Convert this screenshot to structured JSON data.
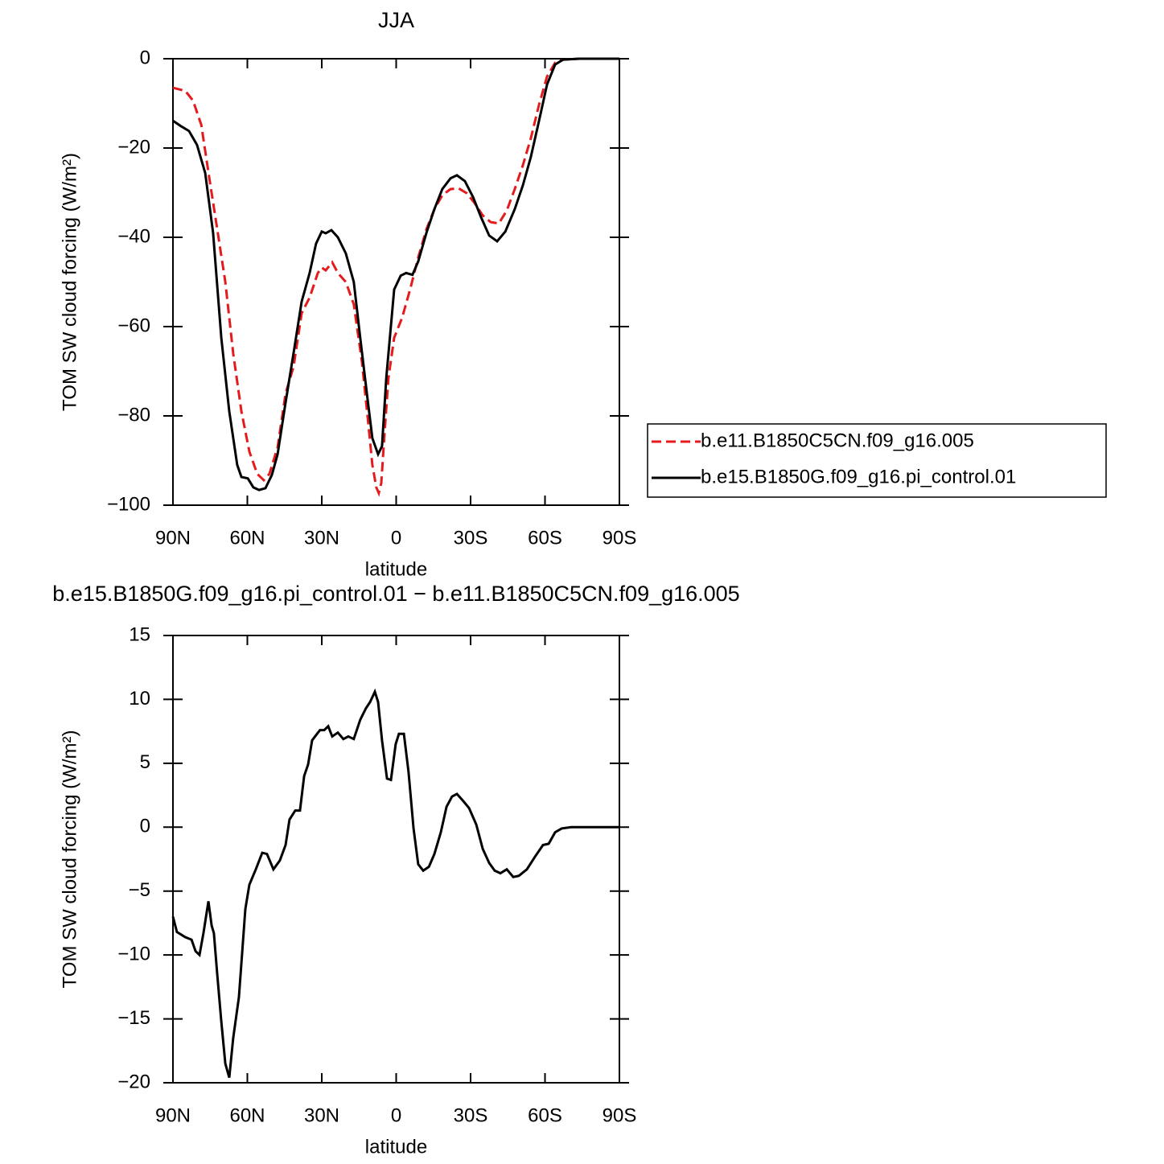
{
  "chart_data": [
    {
      "type": "line",
      "title": "JJA",
      "xlabel": "latitude",
      "ylabel": "TOM SW cloud forcing (W/m²)",
      "xlim": [
        90,
        -90
      ],
      "xticks": [
        {
          "value": 90,
          "label": "90N"
        },
        {
          "value": 60,
          "label": "60N"
        },
        {
          "value": 30,
          "label": "30N"
        },
        0,
        {
          "value": -30,
          "label": "30S"
        },
        {
          "value": -60,
          "label": "60S"
        },
        {
          "value": -90,
          "label": "90S"
        }
      ],
      "ylim": [
        -100,
        0
      ],
      "yticks": [
        {
          "value": -100,
          "label": "−100"
        },
        {
          "value": -80,
          "label": "−80"
        },
        {
          "value": -60,
          "label": "−60"
        },
        {
          "value": -40,
          "label": "−40"
        },
        {
          "value": -20,
          "label": "−20"
        },
        0
      ],
      "legend": "right",
      "series": [
        {
          "name": "b.e11.B1850C5CN.f09_g16.005",
          "color": "#e41a1c",
          "dash": true,
          "x": [
            90,
            85,
            81.9,
            78.6,
            75.4,
            72.2,
            68.9,
            65.7,
            62.4,
            59.2,
            56,
            53.4,
            51.1,
            47.8,
            44.6,
            41.4,
            38.1,
            34.9,
            31.6,
            30,
            28.4,
            25.8,
            23.5,
            20.3,
            17.1,
            13.8,
            11.2,
            9.6,
            8,
            7,
            6,
            4.7,
            3.1,
            0.8,
            -2.4,
            -5.6,
            -8.9,
            -12.2,
            -15.4,
            -18.6,
            -21.9,
            -25.1,
            -28.4,
            -31.6,
            -34.9,
            -38.1,
            -41.4,
            -44.6,
            -47.8,
            -51.1,
            -54.3,
            -57.6,
            -60.8,
            -64.1,
            -67.3,
            -73.8,
            -90
          ],
          "values": [
            -6.5,
            -7.2,
            -9.4,
            -14.8,
            -26.5,
            -38,
            -50,
            -66,
            -79,
            -88,
            -93,
            -94.4,
            -93,
            -87,
            -75,
            -69,
            -57,
            -53.5,
            -48,
            -46.8,
            -47.4,
            -45.6,
            -48,
            -50,
            -55,
            -68,
            -82,
            -91,
            -96,
            -97.3,
            -95,
            -84,
            -71.5,
            -62.5,
            -58,
            -51.7,
            -44.5,
            -38.2,
            -33.7,
            -30.6,
            -29.2,
            -29,
            -30.1,
            -32.3,
            -35.1,
            -36.6,
            -36.9,
            -34,
            -29.2,
            -23.8,
            -17.8,
            -10.3,
            -4,
            -0.9,
            -0.2,
            0,
            0
          ]
        },
        {
          "name": "b.e15.B1850G.f09_g16.pi_control.01",
          "color": "#000000",
          "dash": false,
          "x": [
            90,
            86.8,
            83.5,
            80.3,
            77,
            73.8,
            70.5,
            67.3,
            64.1,
            62.4,
            59.8,
            57.6,
            55.3,
            52.7,
            50.1,
            47.8,
            44.6,
            41.4,
            38.1,
            34.9,
            32.3,
            30,
            28.4,
            26.1,
            23.5,
            20.3,
            17.1,
            14.5,
            11.8,
            9.6,
            7.3,
            5.7,
            4,
            0.8,
            -1.8,
            -4,
            -6.6,
            -8.9,
            -12.2,
            -15.4,
            -18.6,
            -21.9,
            -24.5,
            -27.7,
            -31,
            -34.2,
            -37.5,
            -40.7,
            -44,
            -47.8,
            -51.1,
            -54.3,
            -57.6,
            -60.8,
            -64.1,
            -67.3,
            -73.8,
            -90
          ],
          "values": [
            -13.9,
            -15.1,
            -16.2,
            -19.3,
            -25.6,
            -39,
            -62.5,
            -79,
            -91,
            -93.7,
            -94,
            -96,
            -96.6,
            -96.2,
            -93.2,
            -88.6,
            -77,
            -66,
            -54.4,
            -48,
            -41.4,
            -38.7,
            -39.1,
            -38.4,
            -40,
            -43.6,
            -50,
            -62.5,
            -75,
            -85,
            -88.6,
            -86.8,
            -71.5,
            -51.7,
            -48.6,
            -48,
            -48.4,
            -45.4,
            -39,
            -33.7,
            -29.2,
            -26.8,
            -26.1,
            -27.4,
            -31,
            -35.5,
            -39.6,
            -40.9,
            -38.7,
            -33.7,
            -28.3,
            -22,
            -13.9,
            -5.8,
            -1.3,
            -0.2,
            0,
            0
          ]
        }
      ]
    },
    {
      "type": "line",
      "title": "b.e15.B1850G.f09_g16.pi_control.01 − b.e11.B1850C5CN.f09_g16.005",
      "xlabel": "latitude",
      "ylabel": "TOM SW cloud forcing (W/m²)",
      "xlim": [
        90,
        -90
      ],
      "xticks": [
        {
          "value": 90,
          "label": "90N"
        },
        {
          "value": 60,
          "label": "60N"
        },
        {
          "value": 30,
          "label": "30N"
        },
        0,
        {
          "value": -30,
          "label": "30S"
        },
        {
          "value": -60,
          "label": "60S"
        },
        {
          "value": -90,
          "label": "90S"
        }
      ],
      "ylim": [
        -20,
        15
      ],
      "yticks": [
        {
          "value": -20,
          "label": "−20"
        },
        {
          "value": -15,
          "label": "−15"
        },
        {
          "value": -10,
          "label": "−10"
        },
        {
          "value": -5,
          "label": "−5"
        },
        0,
        5,
        10,
        15
      ],
      "series": [
        {
          "color": "#000000",
          "dash": false,
          "x": [
            90,
            88.4,
            85.1,
            82.5,
            80.9,
            79.3,
            77.7,
            75.7,
            74.4,
            73.5,
            72.2,
            70.5,
            68.9,
            67.3,
            65.7,
            63.4,
            60.8,
            59.2,
            56.6,
            54,
            52.1,
            49.5,
            46.9,
            44.6,
            43,
            40.7,
            38.8,
            37.1,
            35.5,
            33.9,
            31.9,
            30.7,
            29,
            27.4,
            25.8,
            23.5,
            21.3,
            19.3,
            17.1,
            14.5,
            12.2,
            10.5,
            8.6,
            7.3,
            5.7,
            3.7,
            2.1,
            0.2,
            -1.1,
            -3.1,
            -5,
            -7,
            -8.9,
            -10.9,
            -13.2,
            -15.4,
            -18,
            -20.3,
            -22.5,
            -24.5,
            -26.8,
            -29.4,
            -32.3,
            -34.9,
            -37.5,
            -39.7,
            -42,
            -44.6,
            -47.2,
            -49.5,
            -52.7,
            -56,
            -59.2,
            -61.5,
            -64.1,
            -66.7,
            -70.5,
            -90
          ],
          "values": [
            -7,
            -8.2,
            -8.6,
            -8.8,
            -9.7,
            -10,
            -8.3,
            -5.8,
            -7.7,
            -8.3,
            -11.4,
            -15.2,
            -18.5,
            -19.6,
            -16.5,
            -13.3,
            -6.4,
            -4.5,
            -3.3,
            -2,
            -2.1,
            -3.3,
            -2.6,
            -1.4,
            0.6,
            1.3,
            1.3,
            4,
            4.9,
            6.8,
            7.3,
            7.6,
            7.6,
            7.9,
            7.1,
            7.4,
            6.9,
            7.1,
            6.9,
            8.4,
            9.3,
            9.8,
            10.6,
            9.8,
            6.8,
            3.8,
            3.7,
            6.5,
            7.3,
            7.3,
            4.3,
            -0.1,
            -2.9,
            -3.4,
            -3.1,
            -2.1,
            -0.4,
            1.6,
            2.4,
            2.6,
            2.1,
            1.5,
            0.2,
            -1.7,
            -2.8,
            -3.4,
            -3.6,
            -3.3,
            -3.9,
            -3.8,
            -3.3,
            -2.3,
            -1.4,
            -1.3,
            -0.4,
            -0.1,
            0,
            0
          ]
        }
      ]
    }
  ]
}
